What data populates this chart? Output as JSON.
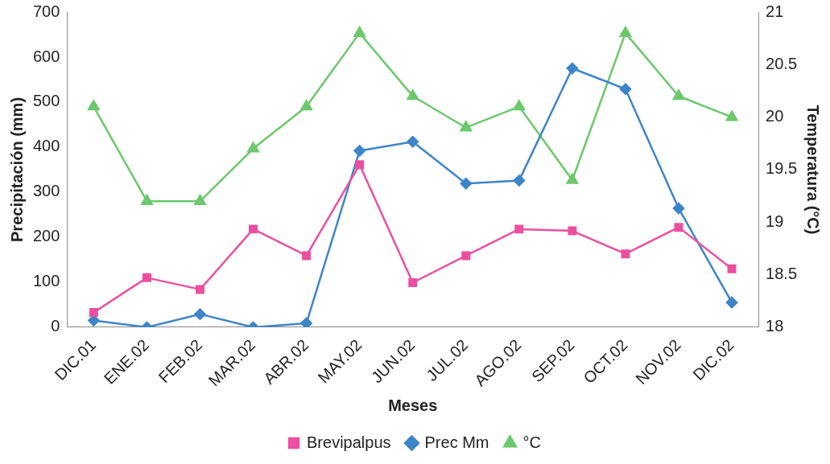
{
  "chart_data": {
    "type": "line",
    "xlabel": "Meses",
    "ylabel": "Precipitación (mm)",
    "y2label": "Temperatura (°C)",
    "categories": [
      "DIC.01",
      "ENE.02",
      "FEB.02",
      "MAR.02",
      "ABR.02",
      "MAY.02",
      "JUN.02",
      "JUL.02",
      "AGO.02",
      "SEP.02",
      "OCT.02",
      "NOV.02",
      "DIC.02"
    ],
    "series": [
      {
        "name": "Brevipalpus",
        "color": "#ec4fa0",
        "marker": "square",
        "values": [
          33,
          110,
          84,
          218,
          159,
          361,
          99,
          159,
          218,
          214,
          163,
          222,
          130
        ]
      },
      {
        "name": "Prec Mm",
        "color": "#3d85c8",
        "marker": "diamond",
        "values": [
          15,
          0,
          29,
          0,
          9,
          392,
          412,
          319,
          326,
          575,
          529,
          264,
          55
        ]
      },
      {
        "name": "°C",
        "color": "#6cc86c",
        "marker": "triangle",
        "axis": "y2",
        "values": [
          20.1,
          19.2,
          19.2,
          19.7,
          20.1,
          20.8,
          20.2,
          19.9,
          20.1,
          19.4,
          20.8,
          20.2,
          20.0
        ]
      }
    ],
    "ylim": [
      0,
      700
    ],
    "yticks": [
      0,
      100,
      200,
      300,
      400,
      500,
      600,
      700
    ],
    "y2lim": [
      18,
      21
    ],
    "y2ticks": [
      18,
      18.5,
      19,
      19.5,
      20,
      20.5,
      21
    ],
    "grid": false,
    "legend": "bottom"
  }
}
